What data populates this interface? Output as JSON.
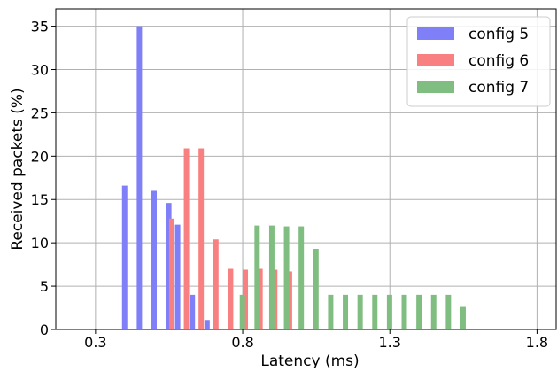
{
  "chart_data": {
    "type": "bar",
    "xlabel": "Latency (ms)",
    "ylabel": "Received packets (%)",
    "xlim": [
      0.165,
      1.865
    ],
    "ylim": [
      0,
      37
    ],
    "xticks": [
      0.3,
      0.8,
      1.3,
      1.8
    ],
    "xtick_labels": [
      "0.3",
      "0.8",
      "1.3",
      "1.8"
    ],
    "yticks": [
      0,
      5,
      10,
      15,
      20,
      25,
      30,
      35
    ],
    "ytick_labels": [
      "0",
      "5",
      "10",
      "15",
      "20",
      "25",
      "30",
      "35"
    ],
    "grid": true,
    "legend_position": "top-right",
    "bar_width": 0.018,
    "series": [
      {
        "name": "config 5",
        "color": "#7f7ff8",
        "x": [
          0.399,
          0.449,
          0.499,
          0.549,
          0.579,
          0.629,
          0.679
        ],
        "values": [
          16.6,
          35.0,
          16.0,
          14.6,
          12.1,
          4.0,
          1.1
        ]
      },
      {
        "name": "config 6",
        "color": "#f88080",
        "x": [
          0.559,
          0.609,
          0.659,
          0.709,
          0.759,
          0.809,
          0.859,
          0.909,
          0.959
        ],
        "values": [
          12.8,
          20.9,
          20.9,
          10.4,
          7.0,
          6.9,
          7.0,
          6.9,
          6.7
        ]
      },
      {
        "name": "config 7",
        "color": "#80bd80",
        "x": [
          0.799,
          0.849,
          0.899,
          0.949,
          0.999,
          1.049,
          1.099,
          1.149,
          1.199,
          1.249,
          1.299,
          1.349,
          1.399,
          1.449,
          1.499,
          1.549
        ],
        "values": [
          4.0,
          12.0,
          12.0,
          11.9,
          11.9,
          9.3,
          4.0,
          4.0,
          4.0,
          4.0,
          4.0,
          4.0,
          4.0,
          4.0,
          4.0,
          2.6
        ]
      }
    ]
  }
}
